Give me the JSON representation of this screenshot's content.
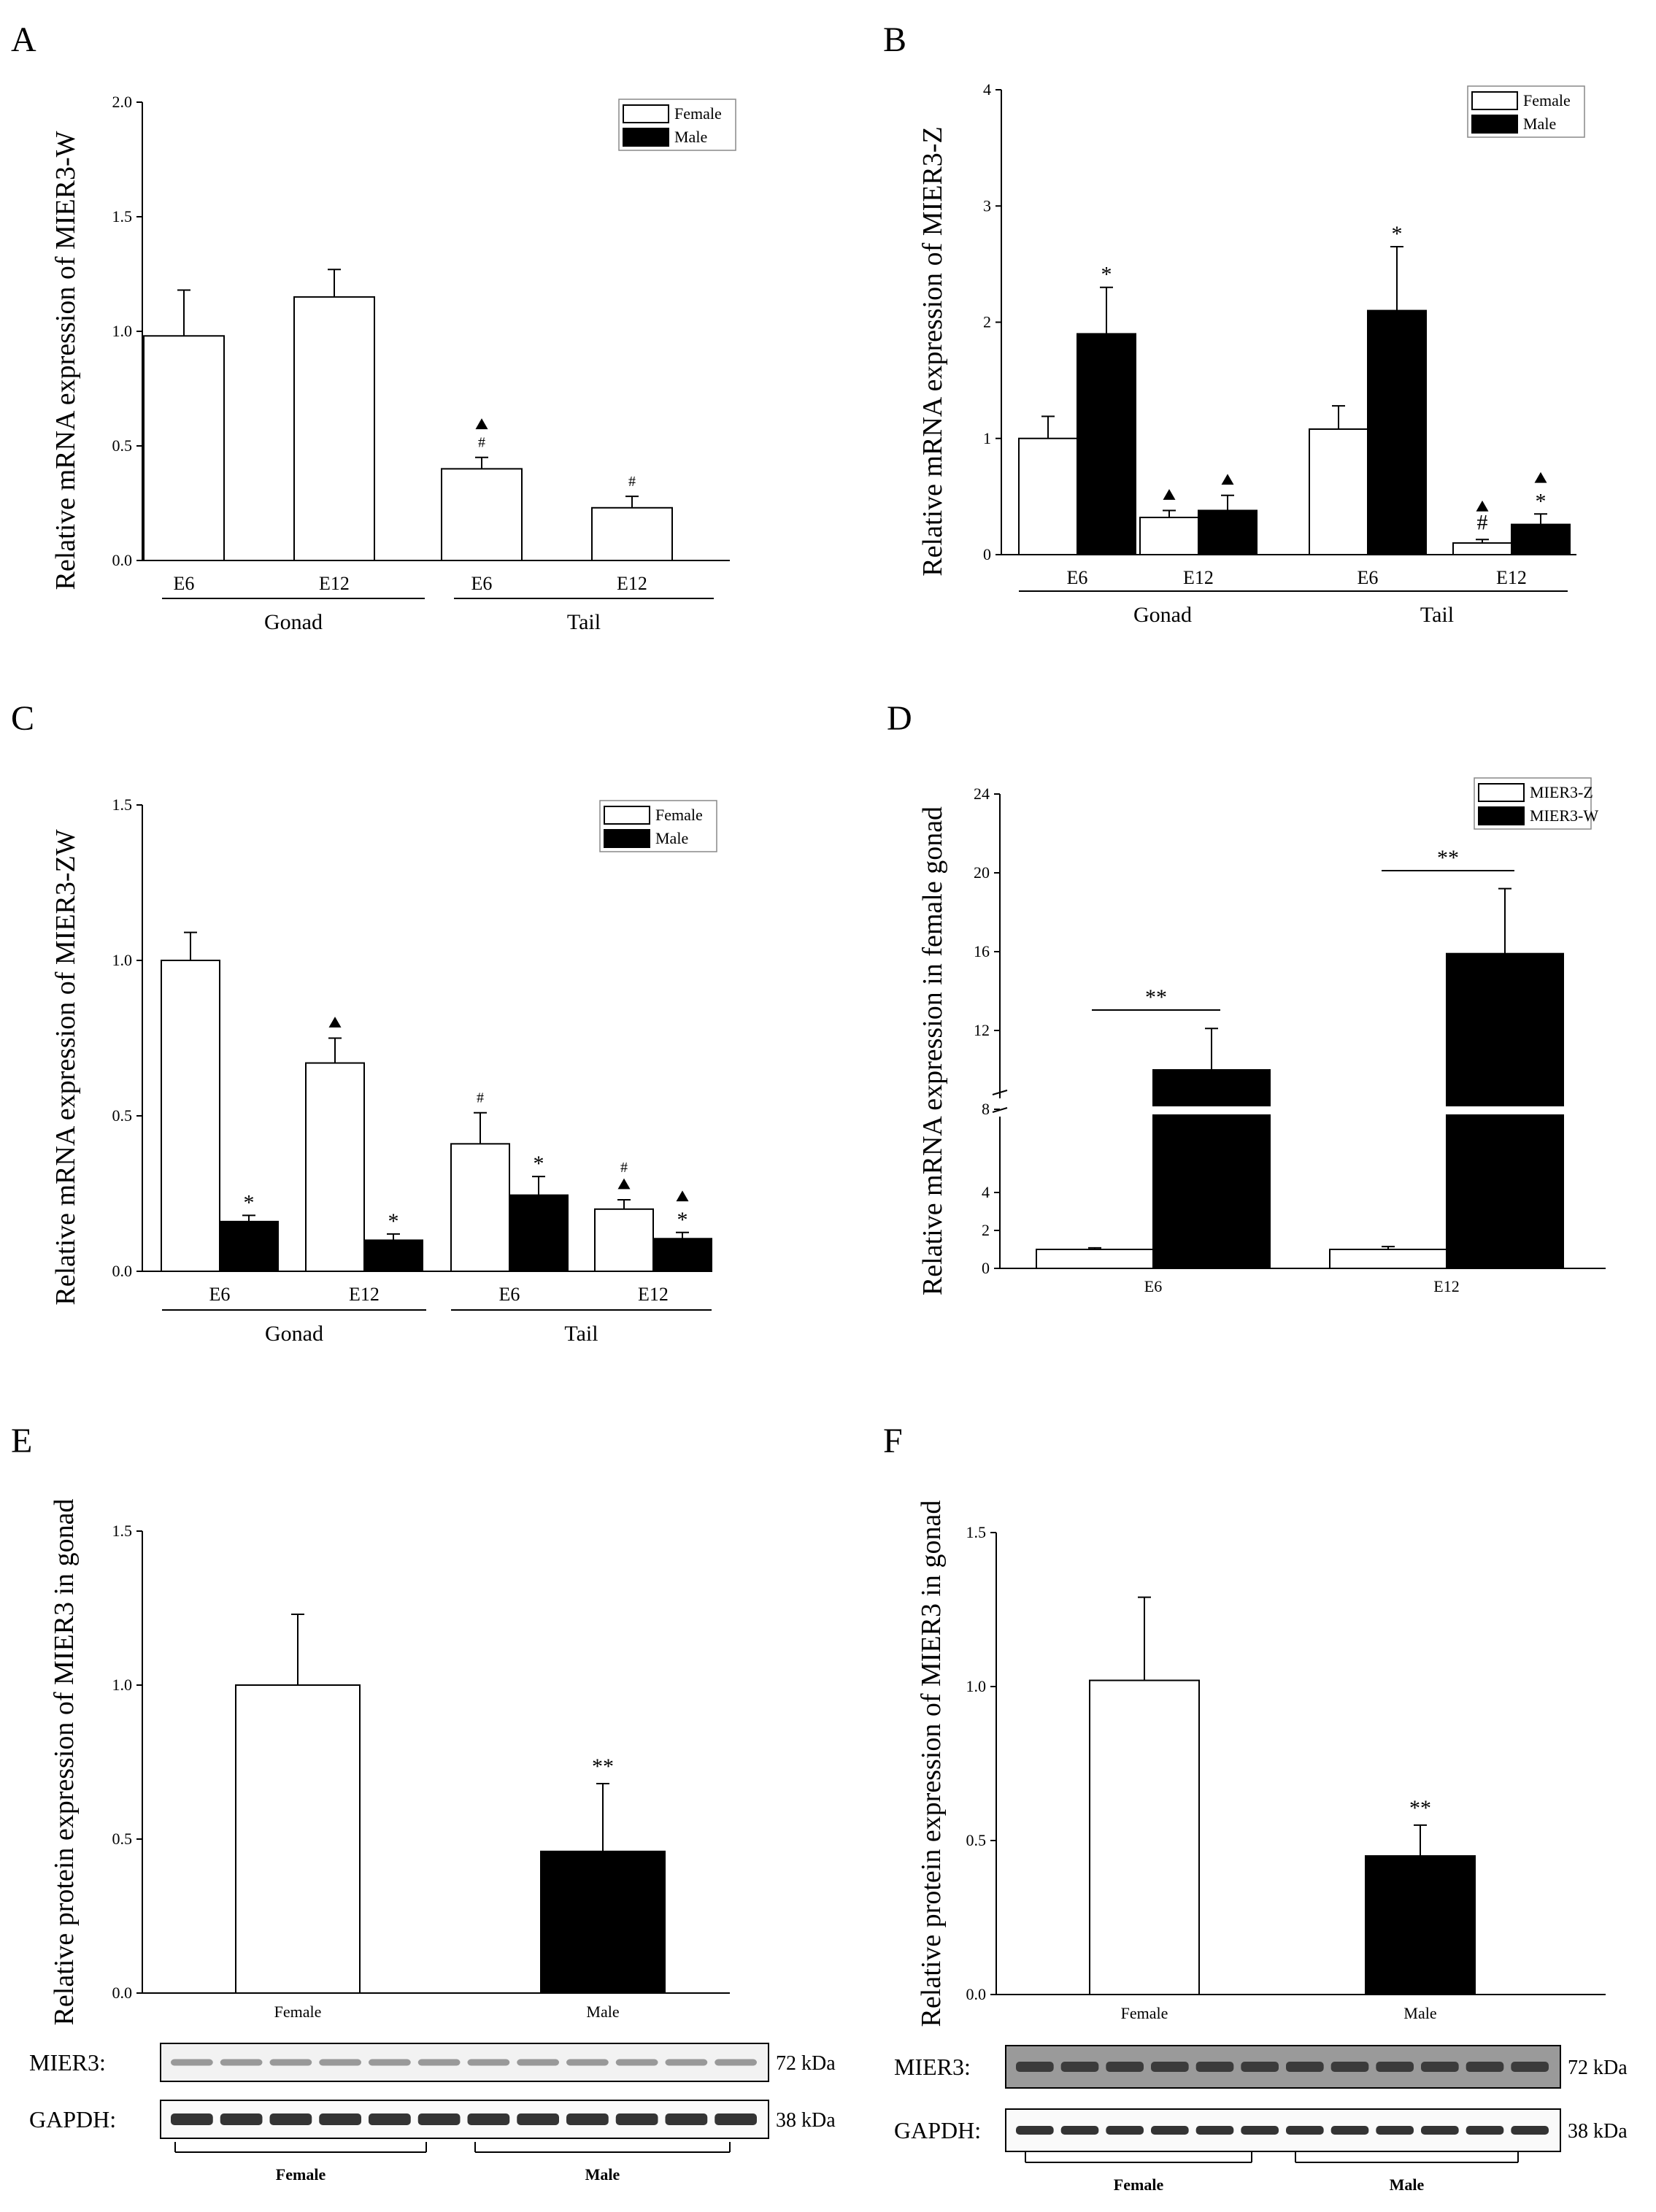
{
  "chart_data": [
    {
      "panel": "A",
      "type": "bar",
      "ylabel": "Relative mRNA expression of MIER3-W",
      "ylim": [
        0,
        2.0
      ],
      "yticks": [
        "0.0",
        "0.5",
        "1.0",
        "1.5",
        "2.0"
      ],
      "groups": [
        "Gonad",
        "Tail"
      ],
      "categories": [
        "E6",
        "E12",
        "E6",
        "E12"
      ],
      "legend": [
        "Female",
        "Male"
      ],
      "series": [
        {
          "name": "Female",
          "values": [
            0.98,
            1.15,
            0.4,
            0.23
          ],
          "errors": [
            0.2,
            0.12,
            0.05,
            0.05
          ]
        }
      ],
      "annotations": [
        {
          "category": 2,
          "series": "Female",
          "marks": [
            "#",
            "▲"
          ]
        },
        {
          "category": 3,
          "series": "Female",
          "marks": [
            "#"
          ]
        }
      ]
    },
    {
      "panel": "B",
      "type": "bar",
      "ylabel": "Relative mRNA expression of MIER3-Z",
      "ylim": [
        0,
        4
      ],
      "yticks": [
        "0",
        "1",
        "2",
        "3",
        "4"
      ],
      "groups": [
        "Gonad",
        "Tail"
      ],
      "categories": [
        "E6",
        "E12",
        "E6",
        "E12"
      ],
      "legend": [
        "Female",
        "Male"
      ],
      "series": [
        {
          "name": "Female",
          "values": [
            1.0,
            0.32,
            1.08,
            0.1
          ],
          "errors": [
            0.19,
            0.06,
            0.2,
            0.03
          ]
        },
        {
          "name": "Male",
          "values": [
            1.9,
            0.38,
            2.1,
            0.26
          ],
          "errors": [
            0.4,
            0.13,
            0.55,
            0.09
          ]
        }
      ],
      "annotations": [
        {
          "category": 0,
          "series": "Male",
          "marks": [
            "*"
          ]
        },
        {
          "category": 1,
          "series": "Female",
          "marks": [
            "▲"
          ]
        },
        {
          "category": 1,
          "series": "Male",
          "marks": [
            "▲"
          ]
        },
        {
          "category": 2,
          "series": "Male",
          "marks": [
            "*"
          ]
        },
        {
          "category": 3,
          "series": "Female",
          "marks": [
            "#",
            "▲"
          ]
        },
        {
          "category": 3,
          "series": "Male",
          "marks": [
            "*",
            "▲"
          ]
        }
      ]
    },
    {
      "panel": "C",
      "type": "bar",
      "ylabel": "Relative mRNA expression of MIER3-ZW",
      "ylim": [
        0,
        1.5
      ],
      "yticks": [
        "0.0",
        "0.5",
        "1.0",
        "1.5"
      ],
      "groups": [
        "Gonad",
        "Tail"
      ],
      "categories": [
        "E6",
        "E12",
        "E6",
        "E12"
      ],
      "legend": [
        "Female",
        "Male"
      ],
      "series": [
        {
          "name": "Female",
          "values": [
            1.0,
            0.67,
            0.41,
            0.2
          ],
          "errors": [
            0.09,
            0.08,
            0.1,
            0.03
          ]
        },
        {
          "name": "Male",
          "values": [
            0.16,
            0.1,
            0.245,
            0.105
          ],
          "errors": [
            0.02,
            0.02,
            0.06,
            0.02
          ]
        }
      ],
      "annotations": [
        {
          "category": 0,
          "series": "Male",
          "marks": [
            "*"
          ]
        },
        {
          "category": 1,
          "series": "Female",
          "marks": [
            "▲"
          ]
        },
        {
          "category": 1,
          "series": "Male",
          "marks": [
            "*"
          ]
        },
        {
          "category": 2,
          "series": "Female",
          "marks": [
            "#"
          ]
        },
        {
          "category": 2,
          "series": "Male",
          "marks": [
            "*"
          ]
        },
        {
          "category": 3,
          "series": "Female",
          "marks": [
            "▲",
            "#"
          ]
        },
        {
          "category": 3,
          "series": "Male",
          "marks": [
            "*",
            "▲"
          ]
        }
      ]
    },
    {
      "panel": "D",
      "type": "bar",
      "ylabel": "Relative mRNA expression in female gonad",
      "broken_axis": {
        "lower": [
          0,
          8
        ],
        "upper": [
          8,
          24
        ]
      },
      "yticks": [
        "0",
        "2",
        "4",
        "8",
        "12",
        "16",
        "20",
        "24"
      ],
      "categories": [
        "E6",
        "E12"
      ],
      "legend": [
        "MIER3-Z",
        "MIER3-W"
      ],
      "series": [
        {
          "name": "MIER3-Z",
          "values": [
            1.0,
            1.0
          ],
          "errors": [
            0.08,
            0.15
          ]
        },
        {
          "name": "MIER3-W",
          "values": [
            10.0,
            15.9
          ],
          "errors": [
            2.1,
            3.3
          ]
        }
      ],
      "annotations": [
        {
          "category": 0,
          "marks": [
            "**"
          ]
        },
        {
          "category": 1,
          "marks": [
            "**"
          ]
        }
      ]
    },
    {
      "panel": "E",
      "type": "bar",
      "ylabel": "Relative protein expression of MIER3 in gonad",
      "ylim": [
        0,
        1.5
      ],
      "yticks": [
        "0.0",
        "0.5",
        "1.0",
        "1.5"
      ],
      "categories": [
        "Female",
        "Male"
      ],
      "values": [
        1.0,
        0.46
      ],
      "errors": [
        0.23,
        0.22
      ],
      "annotations": [
        {
          "category": 1,
          "marks": [
            "**"
          ]
        }
      ],
      "blot": {
        "rows": [
          {
            "label": "MIER3:",
            "kda": "72 kDa"
          },
          {
            "label": "GAPDH:",
            "kda": "38 kDa"
          }
        ],
        "groups": [
          "Female",
          "Male"
        ]
      }
    },
    {
      "panel": "F",
      "type": "bar",
      "ylabel": "Relative protein expression of MIER3 in gonad",
      "ylim": [
        0,
        1.5
      ],
      "yticks": [
        "0.0",
        "0.5",
        "1.0",
        "1.5"
      ],
      "categories": [
        "Female",
        "Male"
      ],
      "values": [
        1.02,
        0.45
      ],
      "errors": [
        0.27,
        0.1
      ],
      "annotations": [
        {
          "category": 1,
          "marks": [
            "**"
          ]
        }
      ],
      "blot": {
        "rows": [
          {
            "label": "MIER3:",
            "kda": "72 kDa"
          },
          {
            "label": "GAPDH:",
            "kda": "38 kDa"
          }
        ],
        "groups": [
          "Female",
          "Male"
        ]
      }
    }
  ]
}
